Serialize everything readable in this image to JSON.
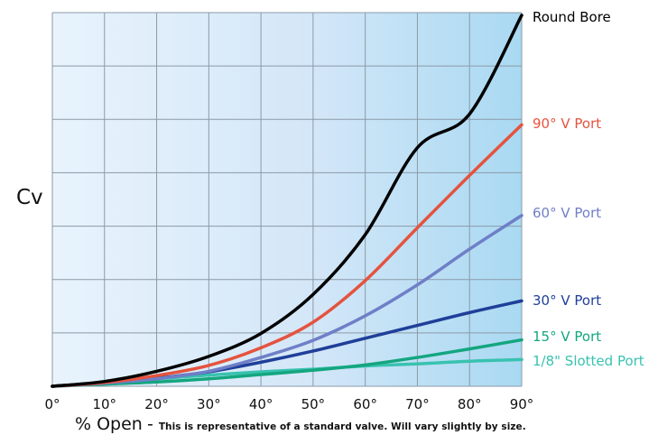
{
  "chart_data": {
    "type": "line",
    "title": "",
    "xlabel": "% Open",
    "ylabel": "Cv",
    "note": "This is representative of a standard valve. Will vary slightly by size.",
    "x": [
      0,
      10,
      20,
      30,
      40,
      50,
      60,
      70,
      80,
      90
    ],
    "x_tick_labels": [
      "0°",
      "10°",
      "20°",
      "30°",
      "40°",
      "50°",
      "60°",
      "70°",
      "80°",
      "90°"
    ],
    "xlim": [
      0,
      90
    ],
    "ylim": [
      0,
      7
    ],
    "y_tick_labels_visible": false,
    "grid": true,
    "legend": "right-edge-labels",
    "series": [
      {
        "name": "Round Bore",
        "color": "#000000",
        "values": [
          0,
          0.09,
          0.28,
          0.56,
          0.99,
          1.72,
          2.84,
          4.47,
          5.1,
          6.95
        ]
      },
      {
        "name": "90° V Port",
        "color": "#e5533e",
        "values": [
          0,
          0.07,
          0.2,
          0.39,
          0.72,
          1.2,
          1.98,
          2.97,
          3.95,
          4.9
        ]
      },
      {
        "name": "60° V Port",
        "color": "#6f7fc7",
        "values": [
          0,
          0.06,
          0.14,
          0.28,
          0.54,
          0.86,
          1.32,
          1.9,
          2.57,
          3.2
        ]
      },
      {
        "name": "30° V Port",
        "color": "#1f3f99",
        "values": [
          0,
          0.07,
          0.15,
          0.27,
          0.45,
          0.66,
          0.9,
          1.14,
          1.38,
          1.6
        ]
      },
      {
        "name": "15° V Port",
        "color": "#14a67f",
        "values": [
          0,
          0.04,
          0.08,
          0.14,
          0.22,
          0.3,
          0.4,
          0.54,
          0.7,
          0.87
        ]
      },
      {
        "name": "1/8\" Slotted Port",
        "color": "#39c2b0",
        "values": [
          0,
          0.07,
          0.14,
          0.21,
          0.27,
          0.32,
          0.38,
          0.42,
          0.47,
          0.5
        ]
      }
    ]
  }
}
